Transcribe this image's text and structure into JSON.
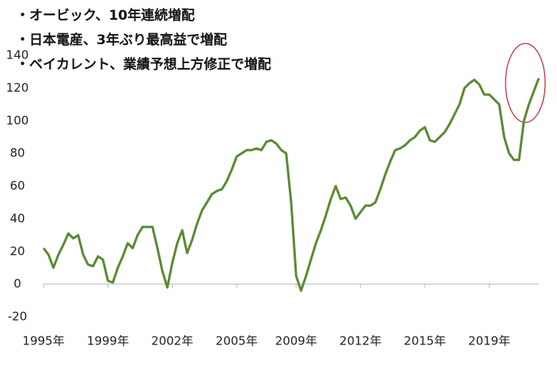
{
  "chart_data": {
    "type": "line",
    "annotations": [
      "・オービック、10年連続増配",
      "・日本電産、3年ぶり最高益で増配",
      "・ベイカレント、業績予想上方修正で増配"
    ],
    "series": [
      {
        "color": "#5a8a32",
        "values": [
          22,
          18,
          10,
          18,
          24,
          31,
          28,
          30,
          18,
          12,
          11,
          17,
          15,
          2,
          1,
          10,
          17,
          25,
          22,
          30,
          35,
          35,
          35,
          22,
          8,
          -2,
          13,
          25,
          33,
          19,
          27,
          37,
          45,
          50,
          55,
          57,
          58,
          63,
          70,
          78,
          80,
          82,
          82,
          83,
          82,
          87,
          88,
          86,
          82,
          80,
          50,
          5,
          -4,
          5,
          15,
          25,
          33,
          42,
          52,
          60,
          52,
          53,
          48,
          40,
          44,
          48,
          48,
          50,
          58,
          67,
          75,
          82,
          83,
          85,
          88,
          90,
          94,
          96,
          88,
          87,
          90,
          93,
          98,
          104,
          110,
          120,
          123,
          125,
          122,
          116,
          116,
          113,
          110,
          90,
          80,
          76,
          76,
          100,
          110,
          118,
          126
        ]
      }
    ],
    "xlim": [
      0,
      100
    ],
    "xticks": [
      {
        "value": 0,
        "label": "1995年"
      },
      {
        "value": 13,
        "label": "1999年"
      },
      {
        "value": 26,
        "label": "2002年"
      },
      {
        "value": 39,
        "label": "2005年"
      },
      {
        "value": 51,
        "label": "2009年"
      },
      {
        "value": 64,
        "label": "2012年"
      },
      {
        "value": 77,
        "label": "2015年"
      },
      {
        "value": 90,
        "label": "2019年"
      }
    ],
    "ylim": [
      -20,
      140
    ],
    "yticks": [
      -20,
      0,
      20,
      40,
      60,
      80,
      100,
      120,
      140
    ]
  }
}
